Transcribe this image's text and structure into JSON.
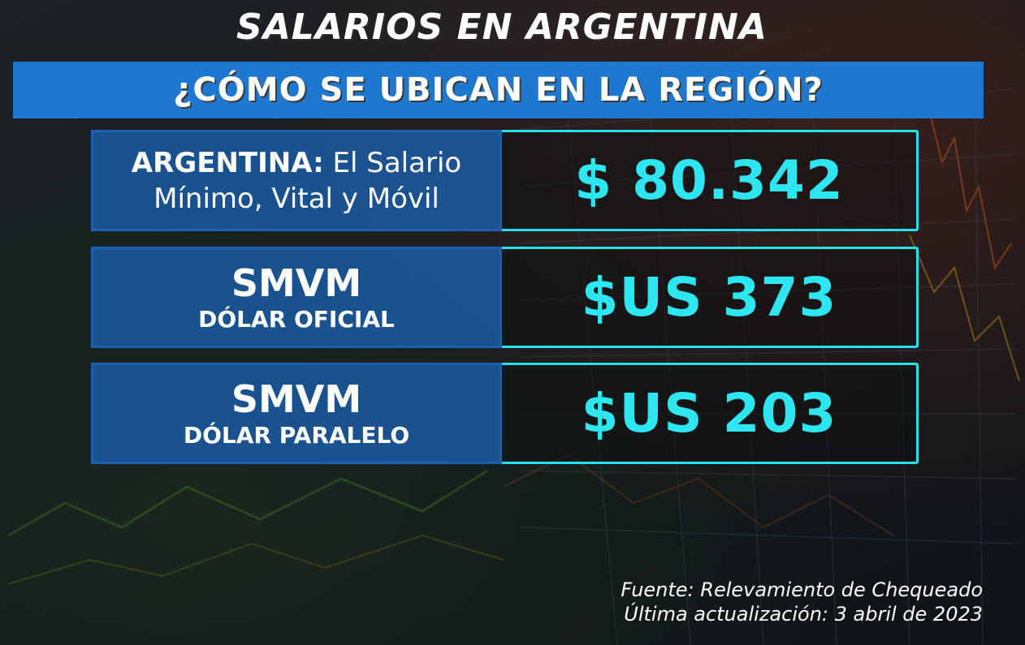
{
  "header": {
    "title": "SALARIOS EN ARGENTINA",
    "subtitle": "¿CÓMO SE UBICAN EN LA REGIÓN?"
  },
  "rows": [
    {
      "label_bold": "ARGENTINA:",
      "label_rest": " El Salario",
      "label_line2": "Mínimo, Vital y Móvil",
      "value": "$ 80.342"
    },
    {
      "label_line1": "SMVM",
      "label_line2": "DÓLAR OFICIAL",
      "value": "$US 373"
    },
    {
      "label_line1": "SMVM",
      "label_line2": "DÓLAR PARALELO",
      "value": "$US 203"
    }
  ],
  "footer": {
    "source": "Fuente: Relevamiento de Chequeado",
    "updated": "Última actualización: 3 abril de 2023"
  },
  "colors": {
    "accent_cyan": "#25e0ec",
    "banner_blue": "#1f78cf",
    "label_blue": "#1c5faa"
  }
}
